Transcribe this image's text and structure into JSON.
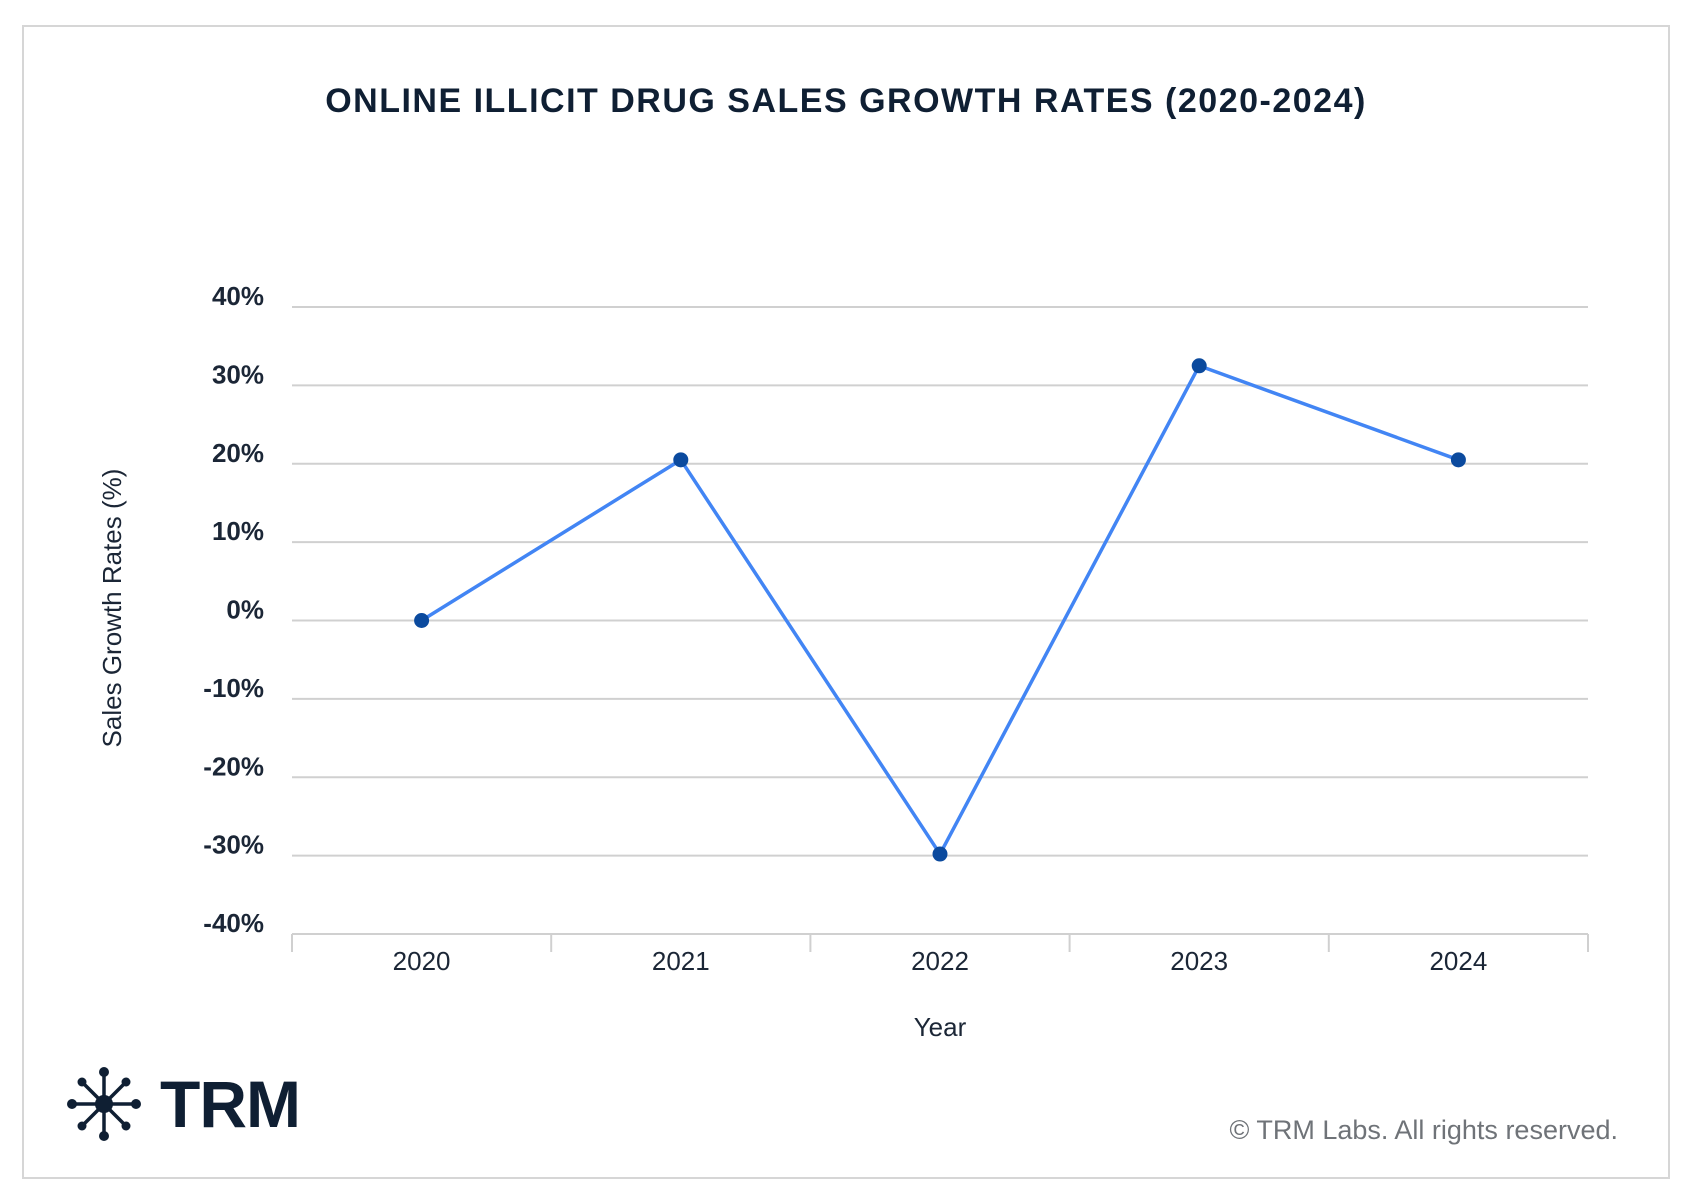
{
  "chart_data": {
    "type": "line",
    "title": "ONLINE ILLICIT DRUG SALES GROWTH RATES (2020-2024)",
    "xlabel": "Year",
    "ylabel": "Sales Growth Rates (%)",
    "categories": [
      "2020",
      "2021",
      "2022",
      "2023",
      "2024"
    ],
    "series": [
      {
        "name": "Sales Growth Rates",
        "values": [
          0,
          20.5,
          -29.8,
          32.5,
          20.5
        ],
        "color": "#4285f4",
        "marker_color": "#0b4a9e"
      }
    ],
    "yticks": [
      40,
      30,
      20,
      10,
      0,
      -10,
      -20,
      -30,
      -40
    ],
    "ytick_labels": [
      "40%",
      "30%",
      "20%",
      "10%",
      "0%",
      "-10%",
      "-20%",
      "-30%",
      "-40%"
    ],
    "ylim": [
      -40,
      40
    ],
    "grid": true,
    "legend": "none"
  },
  "branding": {
    "logo_text": "TRM",
    "copyright": "© TRM Labs. All rights reserved."
  },
  "colors": {
    "title": "#0f1f33",
    "gridline": "#d0d0d0",
    "line": "#4285f4",
    "marker": "#0b4a9e"
  }
}
